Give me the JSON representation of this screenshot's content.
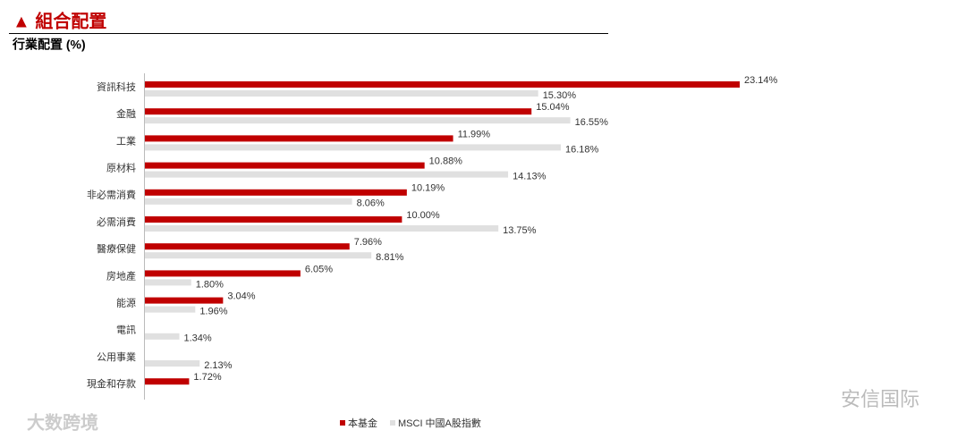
{
  "header": {
    "title": "▲ 組合配置",
    "subtitle": "行業配置 (%)"
  },
  "chart_data": {
    "type": "hbar",
    "categories": [
      "資訊科技",
      "金融",
      "工業",
      "原材料",
      "非必需消費",
      "必需消費",
      "醫療保健",
      "房地產",
      "能源",
      "電訊",
      "公用事業",
      "現金和存款"
    ],
    "series": [
      {
        "name": "本基金",
        "color": "#c00000",
        "values": [
          23.14,
          15.04,
          11.99,
          10.88,
          10.19,
          10.0,
          7.96,
          6.05,
          3.04,
          null,
          null,
          1.72
        ],
        "value_labels": [
          "23.14%",
          "15.04%",
          "11.99%",
          "10.88%",
          "10.19%",
          "10.00%",
          "7.96%",
          "6.05%",
          "3.04%",
          null,
          null,
          "1.72%"
        ]
      },
      {
        "name": "MSCI 中國A股指數",
        "color": "#e0e0e0",
        "values": [
          15.3,
          16.55,
          16.18,
          14.13,
          8.06,
          13.75,
          8.81,
          1.8,
          1.96,
          1.34,
          2.13,
          null
        ],
        "value_labels": [
          "15.30%",
          "16.55%",
          "16.18%",
          "14.13%",
          "8.06%",
          "13.75%",
          "8.81%",
          "1.80%",
          "1.96%",
          "1.34%",
          "2.13%",
          null
        ]
      }
    ]
  },
  "watermarks": [
    "大数跨境",
    "安信国际"
  ]
}
